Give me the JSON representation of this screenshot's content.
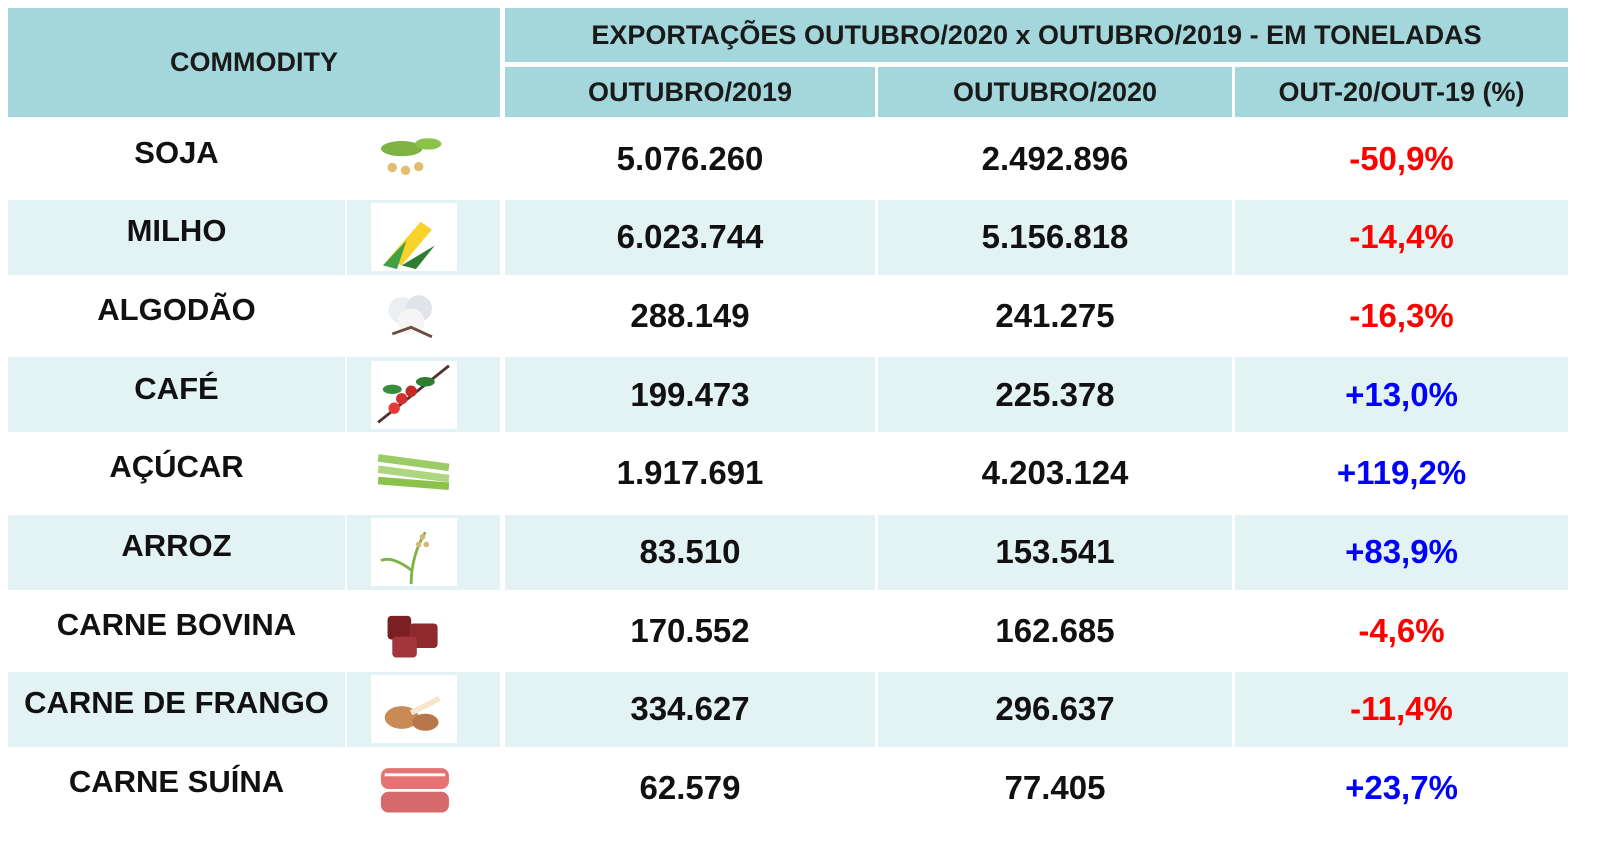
{
  "header": {
    "commodity": "COMMODITY",
    "title": "EXPORTAÇÕES OUTUBRO/2020 x OUTUBRO/2019 - EM TONELADAS",
    "columns": [
      "OUTUBRO/2019",
      "OUTUBRO/2020",
      "OUT-20/OUT-19 (%)"
    ]
  },
  "table": {
    "rows": [
      [
        "SOJA",
        "5.076.260",
        "2.492.896",
        "-50,9%"
      ],
      [
        "MILHO",
        "6.023.744",
        "5.156.818",
        "-14,4%"
      ],
      [
        "ALGODÃO",
        "288.149",
        "241.275",
        "-16,3%"
      ],
      [
        "CAFÉ",
        "199.473",
        "225.378",
        "+13,0%"
      ],
      [
        "AÇÚCAR",
        "1.917.691",
        "4.203.124",
        "+119,2%"
      ],
      [
        "ARROZ",
        "83.510",
        "153.541",
        "+83,9%"
      ],
      [
        "CARNE BOVINA",
        "170.552",
        "162.685",
        "-4,6%"
      ],
      [
        "CARNE DE FRANGO",
        "334.627",
        "296.637",
        "-11,4%"
      ],
      [
        "CARNE SUÍNA",
        "62.579",
        "77.405",
        "+23,7%"
      ]
    ]
  }
}
